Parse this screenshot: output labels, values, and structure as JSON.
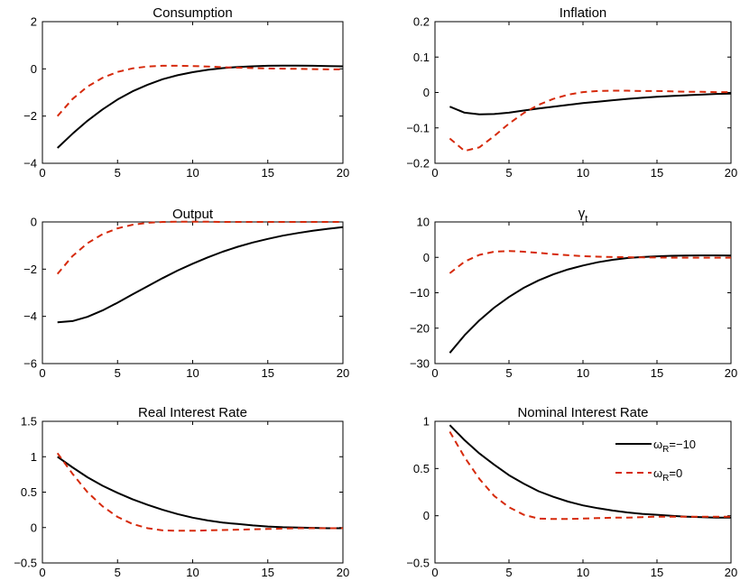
{
  "colors": {
    "series1": "#000000",
    "series2": "#d62a0c"
  },
  "chart_data": [
    {
      "type": "line",
      "title": "Consumption",
      "xlim": [
        0,
        20
      ],
      "ylim": [
        -4,
        2
      ],
      "xticks": [
        0,
        5,
        10,
        15,
        20
      ],
      "yticks": [
        -4,
        -2,
        0,
        2
      ],
      "xtick_labels": [
        "0",
        "5",
        "10",
        "15",
        "20"
      ],
      "ytick_labels": [
        "−4",
        "−2",
        "0",
        "2"
      ],
      "x": [
        1,
        2,
        3,
        4,
        5,
        6,
        7,
        8,
        9,
        10,
        11,
        12,
        13,
        14,
        15,
        16,
        17,
        18,
        19,
        20
      ],
      "series": [
        {
          "style": "solid",
          "values": [
            -3.35,
            -2.75,
            -2.2,
            -1.72,
            -1.3,
            -0.95,
            -0.67,
            -0.44,
            -0.27,
            -0.14,
            -0.04,
            0.03,
            0.08,
            0.11,
            0.13,
            0.14,
            0.14,
            0.13,
            0.12,
            0.11
          ]
        },
        {
          "style": "dashed",
          "values": [
            -2.0,
            -1.28,
            -0.75,
            -0.38,
            -0.13,
            0.02,
            0.1,
            0.13,
            0.13,
            0.12,
            0.1,
            0.07,
            0.05,
            0.03,
            0.02,
            0.01,
            0.0,
            -0.01,
            -0.02,
            -0.02
          ]
        }
      ]
    },
    {
      "type": "line",
      "title": "Inflation",
      "xlim": [
        0,
        20
      ],
      "ylim": [
        -0.2,
        0.2
      ],
      "xticks": [
        0,
        5,
        10,
        15,
        20
      ],
      "yticks": [
        -0.2,
        -0.1,
        0,
        0.1,
        0.2
      ],
      "xtick_labels": [
        "0",
        "5",
        "10",
        "15",
        "20"
      ],
      "ytick_labels": [
        "−0.2",
        "−0.1",
        "0",
        "0.1",
        "0.2"
      ],
      "x": [
        1,
        2,
        3,
        4,
        5,
        6,
        7,
        8,
        9,
        10,
        11,
        12,
        13,
        14,
        15,
        16,
        17,
        18,
        19,
        20
      ],
      "series": [
        {
          "style": "solid",
          "values": [
            -0.04,
            -0.057,
            -0.062,
            -0.061,
            -0.057,
            -0.051,
            -0.045,
            -0.04,
            -0.035,
            -0.03,
            -0.026,
            -0.022,
            -0.018,
            -0.015,
            -0.012,
            -0.01,
            -0.008,
            -0.006,
            -0.004,
            -0.003
          ]
        },
        {
          "style": "dashed",
          "values": [
            -0.13,
            -0.165,
            -0.155,
            -0.123,
            -0.088,
            -0.058,
            -0.035,
            -0.018,
            -0.006,
            0.001,
            0.004,
            0.005,
            0.005,
            0.004,
            0.004,
            0.003,
            0.002,
            0.002,
            0.001,
            0.001
          ]
        }
      ]
    },
    {
      "type": "line",
      "title": "Output",
      "xlim": [
        0,
        20
      ],
      "ylim": [
        -6,
        0
      ],
      "xticks": [
        0,
        5,
        10,
        15,
        20
      ],
      "yticks": [
        -6,
        -4,
        -2,
        0
      ],
      "xtick_labels": [
        "0",
        "5",
        "10",
        "15",
        "20"
      ],
      "ytick_labels": [
        "−6",
        "−4",
        "−2",
        "0"
      ],
      "x": [
        1,
        2,
        3,
        4,
        5,
        6,
        7,
        8,
        9,
        10,
        11,
        12,
        13,
        14,
        15,
        16,
        17,
        18,
        19,
        20
      ],
      "series": [
        {
          "style": "solid",
          "values": [
            -4.25,
            -4.2,
            -4.02,
            -3.75,
            -3.42,
            -3.07,
            -2.72,
            -2.38,
            -2.06,
            -1.77,
            -1.5,
            -1.26,
            -1.05,
            -0.87,
            -0.72,
            -0.58,
            -0.47,
            -0.37,
            -0.29,
            -0.22
          ]
        },
        {
          "style": "dashed",
          "values": [
            -2.2,
            -1.45,
            -0.9,
            -0.52,
            -0.27,
            -0.12,
            -0.04,
            0.0,
            0.01,
            0.01,
            0.01,
            0.0,
            0.0,
            0.0,
            0.0,
            0.0,
            0.0,
            0.0,
            0.0,
            0.0
          ]
        }
      ]
    },
    {
      "type": "line",
      "title": "γ",
      "title_subscript": "t",
      "xlim": [
        0,
        20
      ],
      "ylim": [
        -30,
        10
      ],
      "xticks": [
        0,
        5,
        10,
        15,
        20
      ],
      "yticks": [
        -30,
        -20,
        -10,
        0,
        10
      ],
      "xtick_labels": [
        "0",
        "5",
        "10",
        "15",
        "20"
      ],
      "ytick_labels": [
        "−30",
        "−20",
        "−10",
        "0",
        "10"
      ],
      "x": [
        1,
        2,
        3,
        4,
        5,
        6,
        7,
        8,
        9,
        10,
        11,
        12,
        13,
        14,
        15,
        16,
        17,
        18,
        19,
        20
      ],
      "series": [
        {
          "style": "solid",
          "values": [
            -27.0,
            -22.0,
            -17.8,
            -14.2,
            -11.2,
            -8.6,
            -6.5,
            -4.8,
            -3.4,
            -2.3,
            -1.4,
            -0.7,
            -0.2,
            0.1,
            0.3,
            0.45,
            0.5,
            0.55,
            0.55,
            0.5
          ]
        },
        {
          "style": "dashed",
          "values": [
            -4.5,
            -1.2,
            0.7,
            1.6,
            1.8,
            1.6,
            1.25,
            0.9,
            0.6,
            0.35,
            0.2,
            0.1,
            0.05,
            0.0,
            -0.05,
            -0.1,
            -0.1,
            -0.1,
            -0.1,
            -0.1
          ]
        }
      ]
    },
    {
      "type": "line",
      "title": "Real Interest Rate",
      "xlim": [
        0,
        20
      ],
      "ylim": [
        -0.5,
        1.5
      ],
      "xticks": [
        0,
        5,
        10,
        15,
        20
      ],
      "yticks": [
        -0.5,
        0,
        0.5,
        1,
        1.5
      ],
      "xtick_labels": [
        "0",
        "5",
        "10",
        "15",
        "20"
      ],
      "ytick_labels": [
        "−0.5",
        "0",
        "0.5",
        "1",
        "1.5"
      ],
      "x": [
        1,
        2,
        3,
        4,
        5,
        6,
        7,
        8,
        9,
        10,
        11,
        12,
        13,
        14,
        15,
        16,
        17,
        18,
        19,
        20
      ],
      "series": [
        {
          "style": "solid",
          "values": [
            1.0,
            0.85,
            0.71,
            0.59,
            0.49,
            0.4,
            0.32,
            0.25,
            0.19,
            0.14,
            0.1,
            0.07,
            0.05,
            0.03,
            0.015,
            0.005,
            0.0,
            -0.005,
            -0.01,
            -0.01
          ]
        },
        {
          "style": "dashed",
          "values": [
            1.05,
            0.76,
            0.5,
            0.3,
            0.15,
            0.05,
            -0.01,
            -0.04,
            -0.045,
            -0.045,
            -0.04,
            -0.035,
            -0.03,
            -0.025,
            -0.02,
            -0.015,
            -0.01,
            -0.01,
            -0.01,
            -0.01
          ]
        }
      ]
    },
    {
      "type": "line",
      "title": "Nominal Interest Rate",
      "xlim": [
        0,
        20
      ],
      "ylim": [
        -0.5,
        1
      ],
      "xticks": [
        0,
        5,
        10,
        15,
        20
      ],
      "yticks": [
        -0.5,
        0,
        0.5,
        1
      ],
      "xtick_labels": [
        "0",
        "5",
        "10",
        "15",
        "20"
      ],
      "ytick_labels": [
        "−0.5",
        "0",
        "0.5",
        "1"
      ],
      "x": [
        1,
        2,
        3,
        4,
        5,
        6,
        7,
        8,
        9,
        10,
        11,
        12,
        13,
        14,
        15,
        16,
        17,
        18,
        19,
        20
      ],
      "series": [
        {
          "style": "solid",
          "values": [
            0.96,
            0.8,
            0.66,
            0.54,
            0.43,
            0.34,
            0.26,
            0.2,
            0.15,
            0.11,
            0.08,
            0.055,
            0.035,
            0.02,
            0.01,
            0.0,
            -0.01,
            -0.015,
            -0.02,
            -0.02
          ]
        },
        {
          "style": "dashed",
          "values": [
            0.89,
            0.62,
            0.39,
            0.21,
            0.09,
            0.01,
            -0.03,
            -0.035,
            -0.035,
            -0.03,
            -0.025,
            -0.02,
            -0.02,
            -0.015,
            -0.01,
            -0.01,
            -0.01,
            -0.01,
            -0.01,
            -0.01
          ]
        }
      ],
      "legend": {
        "placement": "right",
        "entries": [
          {
            "label": "ω",
            "subscript": "R",
            "suffix": "=−10",
            "style": "solid"
          },
          {
            "label": "ω",
            "subscript": "R",
            "suffix": "=0",
            "style": "dashed"
          }
        ]
      }
    }
  ]
}
